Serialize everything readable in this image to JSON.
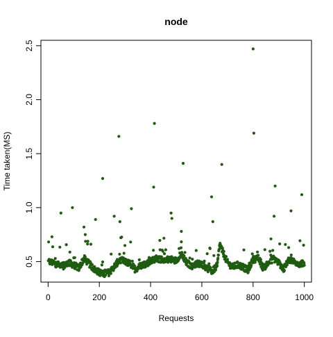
{
  "chart_data": {
    "type": "scatter",
    "title": "node",
    "xlabel": "Requests",
    "ylabel": "Time taken(MS)",
    "xlim": [
      -28,
      1028
    ],
    "ylim": [
      0.31,
      2.55
    ],
    "x_ticks": [
      0,
      200,
      400,
      600,
      800,
      1000
    ],
    "y_ticks": [
      0.5,
      1.0,
      1.5,
      2.0,
      2.5
    ],
    "x_tick_labels": [
      "0",
      "200",
      "400",
      "600",
      "800",
      "1000"
    ],
    "y_tick_labels": [
      "0.5",
      "1.0",
      "1.5",
      "2.0",
      "2.5"
    ],
    "grid": false,
    "point_color": "#1f5c12",
    "baseline_profile": [
      [
        0,
        0.5
      ],
      [
        20,
        0.49
      ],
      [
        40,
        0.47
      ],
      [
        60,
        0.46
      ],
      [
        80,
        0.49
      ],
      [
        100,
        0.47
      ],
      [
        120,
        0.44
      ],
      [
        140,
        0.53
      ],
      [
        160,
        0.48
      ],
      [
        180,
        0.43
      ],
      [
        200,
        0.4
      ],
      [
        220,
        0.39
      ],
      [
        240,
        0.4
      ],
      [
        260,
        0.46
      ],
      [
        280,
        0.52
      ],
      [
        300,
        0.5
      ],
      [
        320,
        0.48
      ],
      [
        340,
        0.43
      ],
      [
        360,
        0.46
      ],
      [
        380,
        0.48
      ],
      [
        400,
        0.5
      ],
      [
        420,
        0.53
      ],
      [
        440,
        0.52
      ],
      [
        460,
        0.52
      ],
      [
        480,
        0.52
      ],
      [
        500,
        0.51
      ],
      [
        520,
        0.58
      ],
      [
        540,
        0.49
      ],
      [
        560,
        0.46
      ],
      [
        580,
        0.48
      ],
      [
        600,
        0.48
      ],
      [
        620,
        0.44
      ],
      [
        640,
        0.41
      ],
      [
        660,
        0.46
      ],
      [
        670,
        0.66
      ],
      [
        680,
        0.6
      ],
      [
        700,
        0.49
      ],
      [
        720,
        0.45
      ],
      [
        740,
        0.47
      ],
      [
        760,
        0.45
      ],
      [
        780,
        0.42
      ],
      [
        800,
        0.52
      ],
      [
        820,
        0.53
      ],
      [
        840,
        0.44
      ],
      [
        860,
        0.49
      ],
      [
        880,
        0.53
      ],
      [
        900,
        0.49
      ],
      [
        920,
        0.43
      ],
      [
        940,
        0.52
      ],
      [
        960,
        0.5
      ],
      [
        980,
        0.48
      ],
      [
        1000,
        0.48
      ]
    ],
    "notable_points": [
      {
        "x": 15,
        "y": 0.73
      },
      {
        "x": 50,
        "y": 0.95
      },
      {
        "x": 95,
        "y": 1.0
      },
      {
        "x": 140,
        "y": 0.82
      },
      {
        "x": 145,
        "y": 0.75
      },
      {
        "x": 185,
        "y": 0.89
      },
      {
        "x": 213,
        "y": 1.27
      },
      {
        "x": 258,
        "y": 0.92
      },
      {
        "x": 276,
        "y": 1.66
      },
      {
        "x": 280,
        "y": 0.87
      },
      {
        "x": 325,
        "y": 0.99
      },
      {
        "x": 412,
        "y": 1.19
      },
      {
        "x": 415,
        "y": 1.78
      },
      {
        "x": 480,
        "y": 0.95
      },
      {
        "x": 483,
        "y": 0.9
      },
      {
        "x": 520,
        "y": 0.78
      },
      {
        "x": 527,
        "y": 1.41
      },
      {
        "x": 638,
        "y": 1.1
      },
      {
        "x": 643,
        "y": 0.87
      },
      {
        "x": 678,
        "y": 1.4
      },
      {
        "x": 800,
        "y": 2.47
      },
      {
        "x": 803,
        "y": 1.69
      },
      {
        "x": 882,
        "y": 0.92
      },
      {
        "x": 886,
        "y": 1.2
      },
      {
        "x": 948,
        "y": 0.97
      },
      {
        "x": 990,
        "y": 1.12
      }
    ]
  }
}
